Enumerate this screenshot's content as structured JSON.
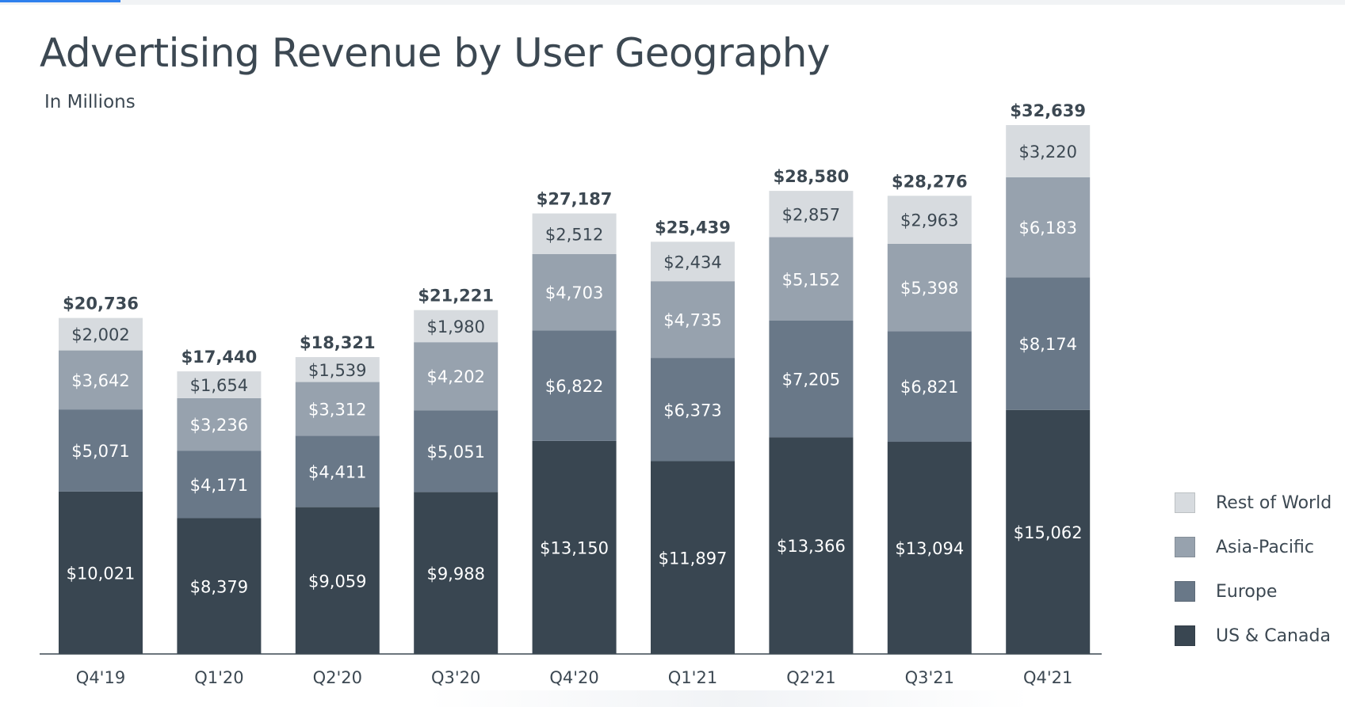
{
  "colors": {
    "rest_of_world": "#d7dbdf",
    "asia_pacific": "#97a2ae",
    "europe": "#697888",
    "us_canada": "#394651",
    "axis": "#3c4852"
  },
  "chart_data": {
    "type": "bar",
    "stacked": true,
    "title": "Advertising Revenue by User Geography",
    "subtitle": "In Millions",
    "categories": [
      "Q4'19",
      "Q1'20",
      "Q2'20",
      "Q3'20",
      "Q4'20",
      "Q1'21",
      "Q2'21",
      "Q3'21",
      "Q4'21"
    ],
    "series": [
      {
        "name": "US & Canada",
        "values": [
          10021,
          8379,
          9059,
          9988,
          13150,
          11897,
          13366,
          13094,
          15062
        ]
      },
      {
        "name": "Europe",
        "values": [
          5071,
          4171,
          4411,
          5051,
          6822,
          6373,
          7205,
          6821,
          8174
        ]
      },
      {
        "name": "Asia-Pacific",
        "values": [
          3642,
          3236,
          3312,
          4202,
          4703,
          4735,
          5152,
          5398,
          6183
        ]
      },
      {
        "name": "Rest of World",
        "values": [
          2002,
          1654,
          1539,
          1980,
          2512,
          2434,
          2857,
          2963,
          3220
        ]
      }
    ],
    "totals": [
      20736,
      17440,
      18321,
      21221,
      27187,
      25439,
      28580,
      28276,
      32639
    ],
    "segment_labels": [
      [
        "$10,021",
        "$5,071",
        "$3,642",
        "$2,002"
      ],
      [
        "$8,379",
        "$4,171",
        "$3,236",
        "$1,654"
      ],
      [
        "$9,059",
        "$4,411",
        "$3,312",
        "$1,539"
      ],
      [
        "$9,988",
        "$5,051",
        "$4,202",
        "$1,980"
      ],
      [
        "$13,150",
        "$6,822",
        "$4,703",
        "$2,512"
      ],
      [
        "$11,897",
        "$6,373",
        "$4,735",
        "$2,434"
      ],
      [
        "$13,366",
        "$7,205",
        "$5,152",
        "$2,857"
      ],
      [
        "$13,094",
        "$6,821",
        "$5,398",
        "$2,963"
      ],
      [
        "$15,062",
        "$8,174",
        "$6,183",
        "$3,220"
      ]
    ],
    "total_labels": [
      "$20,736",
      "$17,440",
      "$18,321",
      "$21,221",
      "$27,187",
      "$25,439",
      "$28,580",
      "$28,276",
      "$32,639"
    ],
    "ylim": [
      0,
      32639
    ],
    "grid": false,
    "legend_position": "right",
    "legend": [
      "Rest of World",
      "Asia-Pacific",
      "Europe",
      "US & Canada"
    ]
  }
}
